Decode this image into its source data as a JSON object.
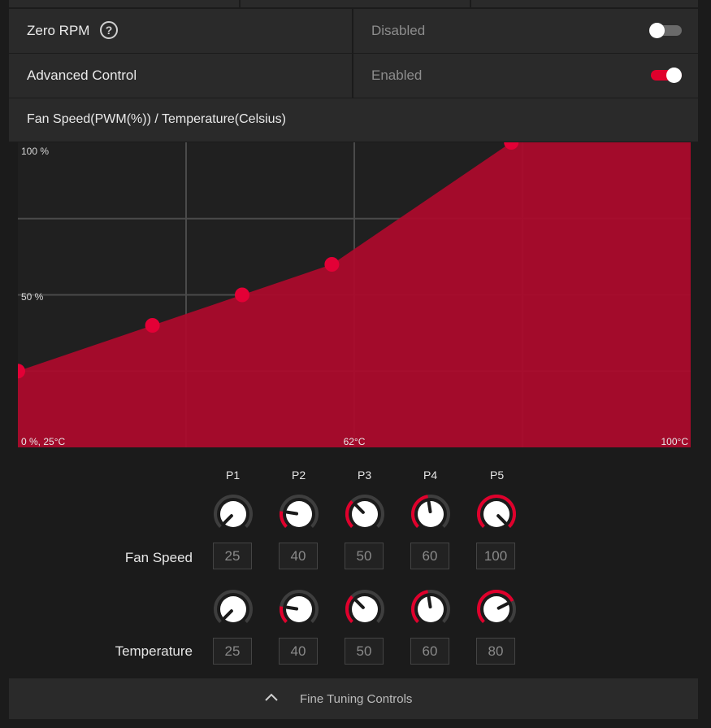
{
  "settings": {
    "zero_rpm": {
      "label": "Zero RPM",
      "value": "Disabled",
      "enabled": false
    },
    "advanced_control": {
      "label": "Advanced Control",
      "value": "Enabled",
      "enabled": true
    }
  },
  "chart_header": "Fan Speed(PWM(%)) / Temperature(Celsius)",
  "chart_data": {
    "type": "area",
    "xlabel": "",
    "ylabel": "",
    "xlim": [
      25,
      100
    ],
    "ylim": [
      0,
      100
    ],
    "y_tick_labels": [
      "100 %",
      "50 %"
    ],
    "corner_label_left": "0 %, 25°C",
    "x_tick_labels": [
      "62°C",
      "100°C"
    ],
    "x": [
      25,
      40,
      50,
      60,
      80,
      100
    ],
    "y": [
      25,
      40,
      50,
      60,
      100,
      100
    ],
    "colors": {
      "fill": "#ad0a2c",
      "point": "#e30036",
      "grid": "#4a4a4a",
      "bg": "#202020"
    }
  },
  "points": {
    "labels": [
      "P1",
      "P2",
      "P3",
      "P4",
      "P5"
    ],
    "fan_speed_label": "Fan Speed",
    "temperature_label": "Temperature",
    "fan_speed_values": [
      "25",
      "40",
      "50",
      "60",
      "100"
    ],
    "temperature_values": [
      "25",
      "40",
      "50",
      "60",
      "80"
    ],
    "fan_speed_levels": [
      25,
      40,
      50,
      60,
      100
    ],
    "temperature_levels": [
      25,
      40,
      50,
      60,
      80
    ]
  },
  "footer": {
    "label": "Fine Tuning Controls"
  },
  "accent": "#e0002c"
}
